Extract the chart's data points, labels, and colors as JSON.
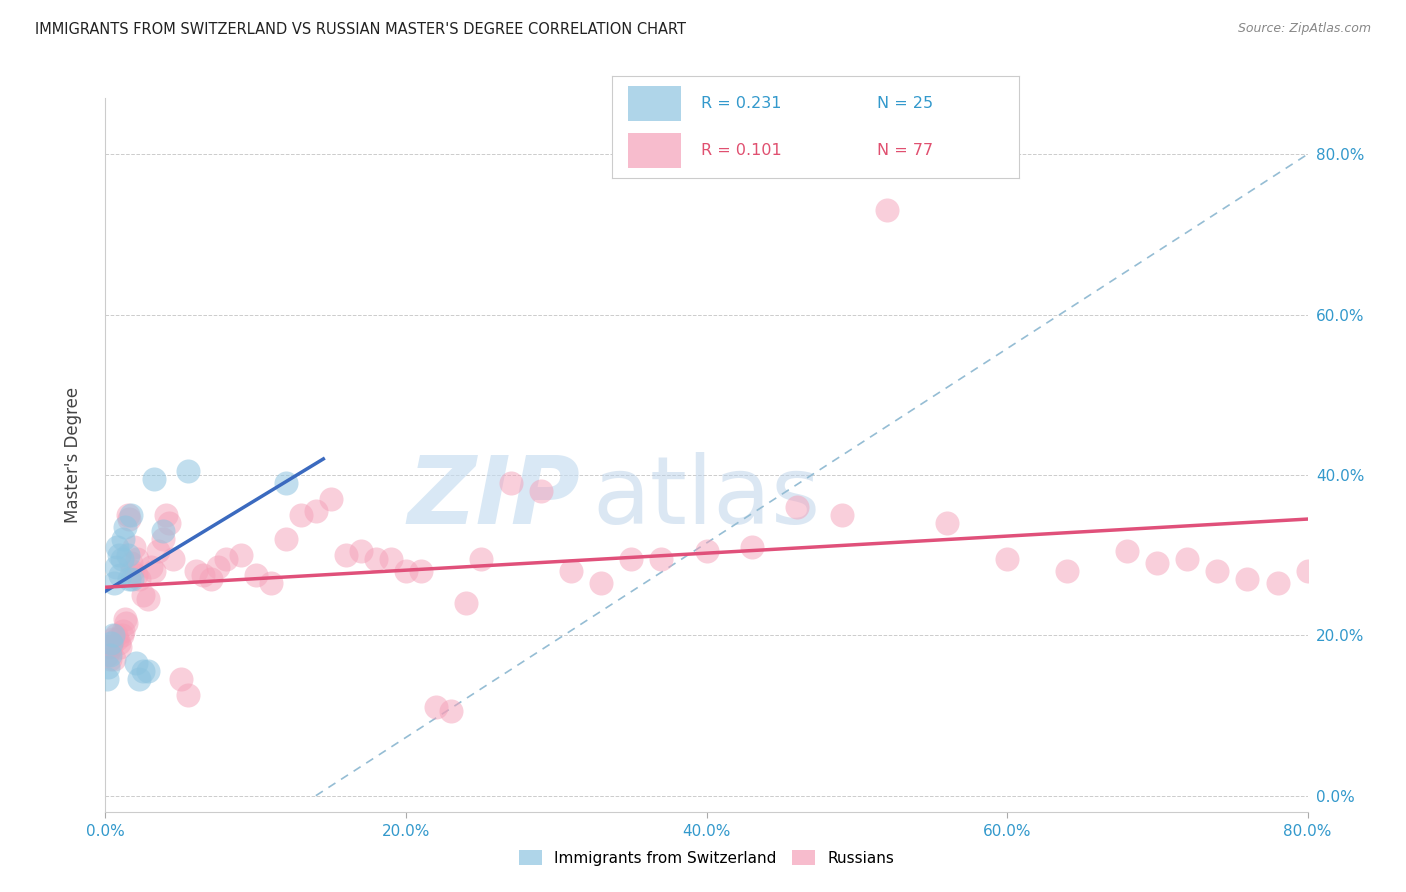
{
  "title": "IMMIGRANTS FROM SWITZERLAND VS RUSSIAN MASTER'S DEGREE CORRELATION CHART",
  "source": "Source: ZipAtlas.com",
  "ylabel": "Master's Degree",
  "xlim": [
    0.0,
    0.8
  ],
  "ylim": [
    -0.02,
    0.87
  ],
  "ytick_vals": [
    0.0,
    0.2,
    0.4,
    0.6,
    0.8
  ],
  "xtick_vals": [
    0.0,
    0.2,
    0.4,
    0.6,
    0.8
  ],
  "swiss_color": "#8EC4E0",
  "russian_color": "#F5A0B8",
  "swiss_line_color": "#3B6ABF",
  "russian_line_color": "#E0507A",
  "diagonal_color": "#95BDD4",
  "swiss_x": [
    0.001,
    0.002,
    0.003,
    0.004,
    0.005,
    0.006,
    0.007,
    0.008,
    0.009,
    0.01,
    0.011,
    0.012,
    0.013,
    0.015,
    0.016,
    0.017,
    0.018,
    0.02,
    0.022,
    0.025,
    0.028,
    0.032,
    0.038,
    0.055,
    0.12
  ],
  "swiss_y": [
    0.145,
    0.16,
    0.175,
    0.19,
    0.2,
    0.265,
    0.285,
    0.31,
    0.3,
    0.275,
    0.295,
    0.32,
    0.335,
    0.3,
    0.27,
    0.35,
    0.27,
    0.165,
    0.145,
    0.155,
    0.155,
    0.395,
    0.33,
    0.405,
    0.39
  ],
  "russian_x": [
    0.001,
    0.002,
    0.003,
    0.004,
    0.005,
    0.006,
    0.007,
    0.008,
    0.009,
    0.01,
    0.011,
    0.012,
    0.013,
    0.014,
    0.015,
    0.016,
    0.017,
    0.018,
    0.019,
    0.02,
    0.021,
    0.022,
    0.025,
    0.028,
    0.03,
    0.032,
    0.035,
    0.038,
    0.04,
    0.042,
    0.045,
    0.05,
    0.055,
    0.06,
    0.065,
    0.07,
    0.075,
    0.08,
    0.09,
    0.1,
    0.11,
    0.12,
    0.13,
    0.14,
    0.15,
    0.16,
    0.17,
    0.18,
    0.19,
    0.2,
    0.21,
    0.22,
    0.23,
    0.24,
    0.25,
    0.27,
    0.29,
    0.31,
    0.33,
    0.35,
    0.37,
    0.4,
    0.43,
    0.46,
    0.49,
    0.52,
    0.56,
    0.6,
    0.64,
    0.68,
    0.7,
    0.72,
    0.74,
    0.76,
    0.78,
    0.8
  ],
  "russian_y": [
    0.175,
    0.185,
    0.17,
    0.185,
    0.195,
    0.17,
    0.2,
    0.195,
    0.19,
    0.185,
    0.2,
    0.205,
    0.22,
    0.215,
    0.35,
    0.345,
    0.29,
    0.28,
    0.31,
    0.275,
    0.295,
    0.27,
    0.25,
    0.245,
    0.285,
    0.28,
    0.305,
    0.32,
    0.35,
    0.34,
    0.295,
    0.145,
    0.125,
    0.28,
    0.275,
    0.27,
    0.285,
    0.295,
    0.3,
    0.275,
    0.265,
    0.32,
    0.35,
    0.355,
    0.37,
    0.3,
    0.305,
    0.295,
    0.295,
    0.28,
    0.28,
    0.11,
    0.105,
    0.24,
    0.295,
    0.39,
    0.38,
    0.28,
    0.265,
    0.295,
    0.295,
    0.305,
    0.31,
    0.36,
    0.35,
    0.73,
    0.34,
    0.295,
    0.28,
    0.305,
    0.29,
    0.295,
    0.28,
    0.27,
    0.265,
    0.28
  ],
  "swiss_line_x": [
    0.0,
    0.145
  ],
  "swiss_line_y": [
    0.255,
    0.42
  ],
  "russian_line_x": [
    0.0,
    0.8
  ],
  "russian_line_y": [
    0.26,
    0.345
  ]
}
